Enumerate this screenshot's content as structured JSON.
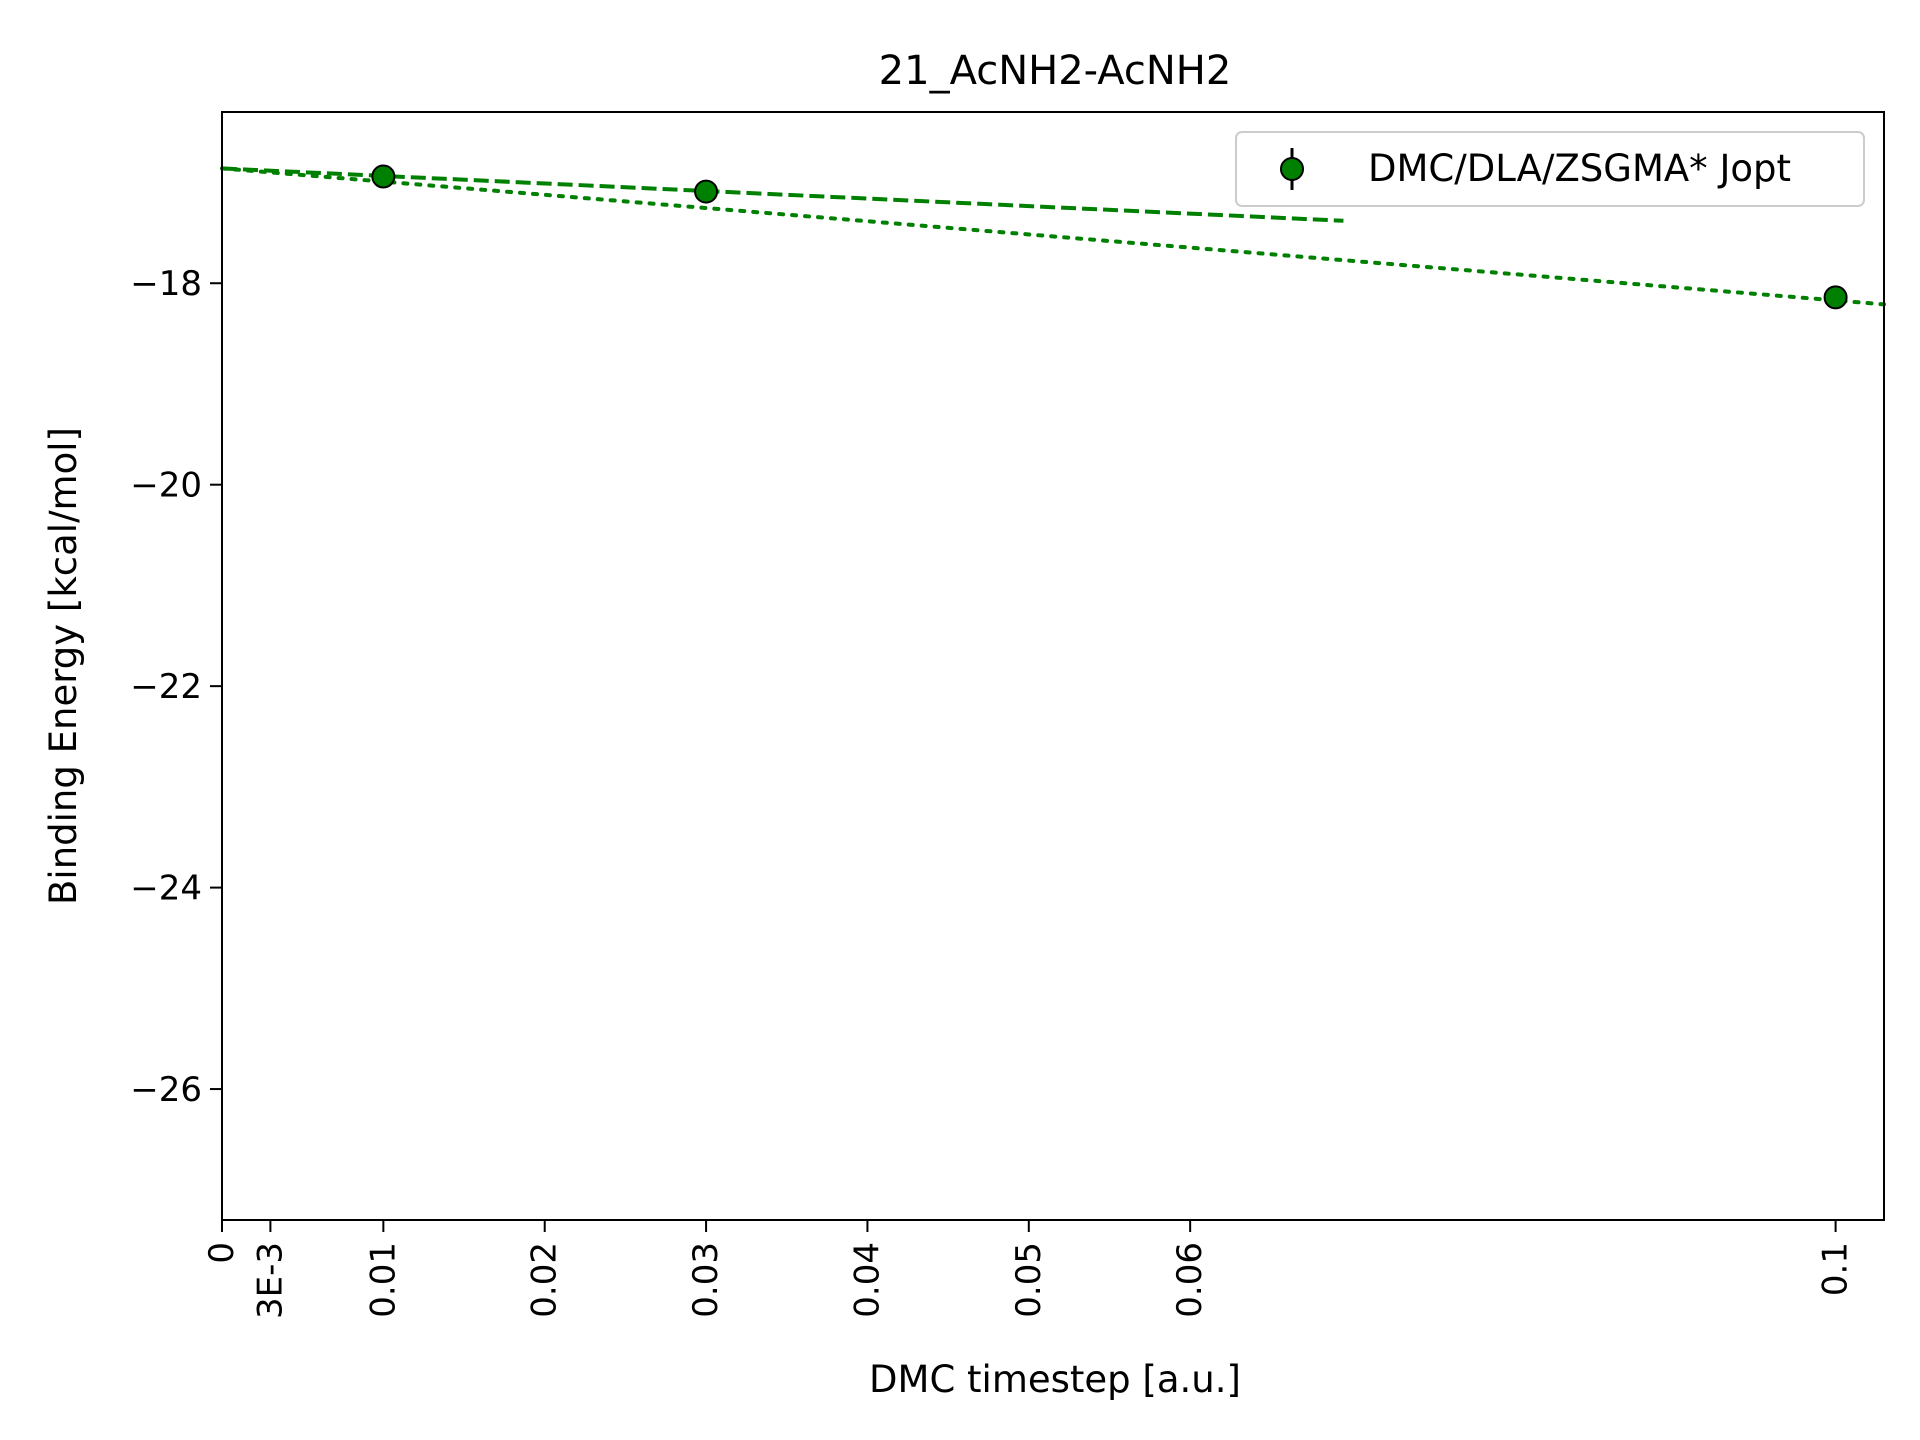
{
  "chart_data": {
    "type": "scatter",
    "title": "21_AcNH2-AcNH2",
    "xlabel": "DMC timestep [a.u.]",
    "ylabel": "Binding Energy [kcal/mol]",
    "xlim": [
      0,
      0.103
    ],
    "ylim": [
      -27.3,
      -16.3
    ],
    "x_ticks": [
      {
        "value": 0,
        "label": "0"
      },
      {
        "value": 0.003,
        "label": "3E-3"
      },
      {
        "value": 0.01,
        "label": "0.01"
      },
      {
        "value": 0.02,
        "label": "0.02"
      },
      {
        "value": 0.03,
        "label": "0.03"
      },
      {
        "value": 0.04,
        "label": "0.04"
      },
      {
        "value": 0.05,
        "label": "0.05"
      },
      {
        "value": 0.06,
        "label": "0.06"
      },
      {
        "value": 0.1,
        "label": "0.1"
      }
    ],
    "y_ticks": [
      {
        "value": -18,
        "label": "−18"
      },
      {
        "value": -20,
        "label": "−20"
      },
      {
        "value": -22,
        "label": "−22"
      },
      {
        "value": -24,
        "label": "−24"
      },
      {
        "value": -26,
        "label": "−26"
      }
    ],
    "series": [
      {
        "name": "DMC/DLA/ZSGMA* Jopt",
        "color": "#008000",
        "points": [
          {
            "x": 0.01,
            "y": -16.94
          },
          {
            "x": 0.03,
            "y": -17.09
          },
          {
            "x": 0.1,
            "y": -18.14
          }
        ]
      }
    ],
    "fits": [
      {
        "style": "dashed",
        "color": "#008000",
        "x_range": [
          0,
          0.0695
        ],
        "y_start": -16.86,
        "y_end": -17.38
      },
      {
        "style": "dotted",
        "color": "#008000",
        "x_range": [
          0,
          0.103
        ],
        "y_start": -16.86,
        "y_end": -18.21
      }
    ],
    "legend": {
      "position": "top-right"
    },
    "grid": false
  }
}
